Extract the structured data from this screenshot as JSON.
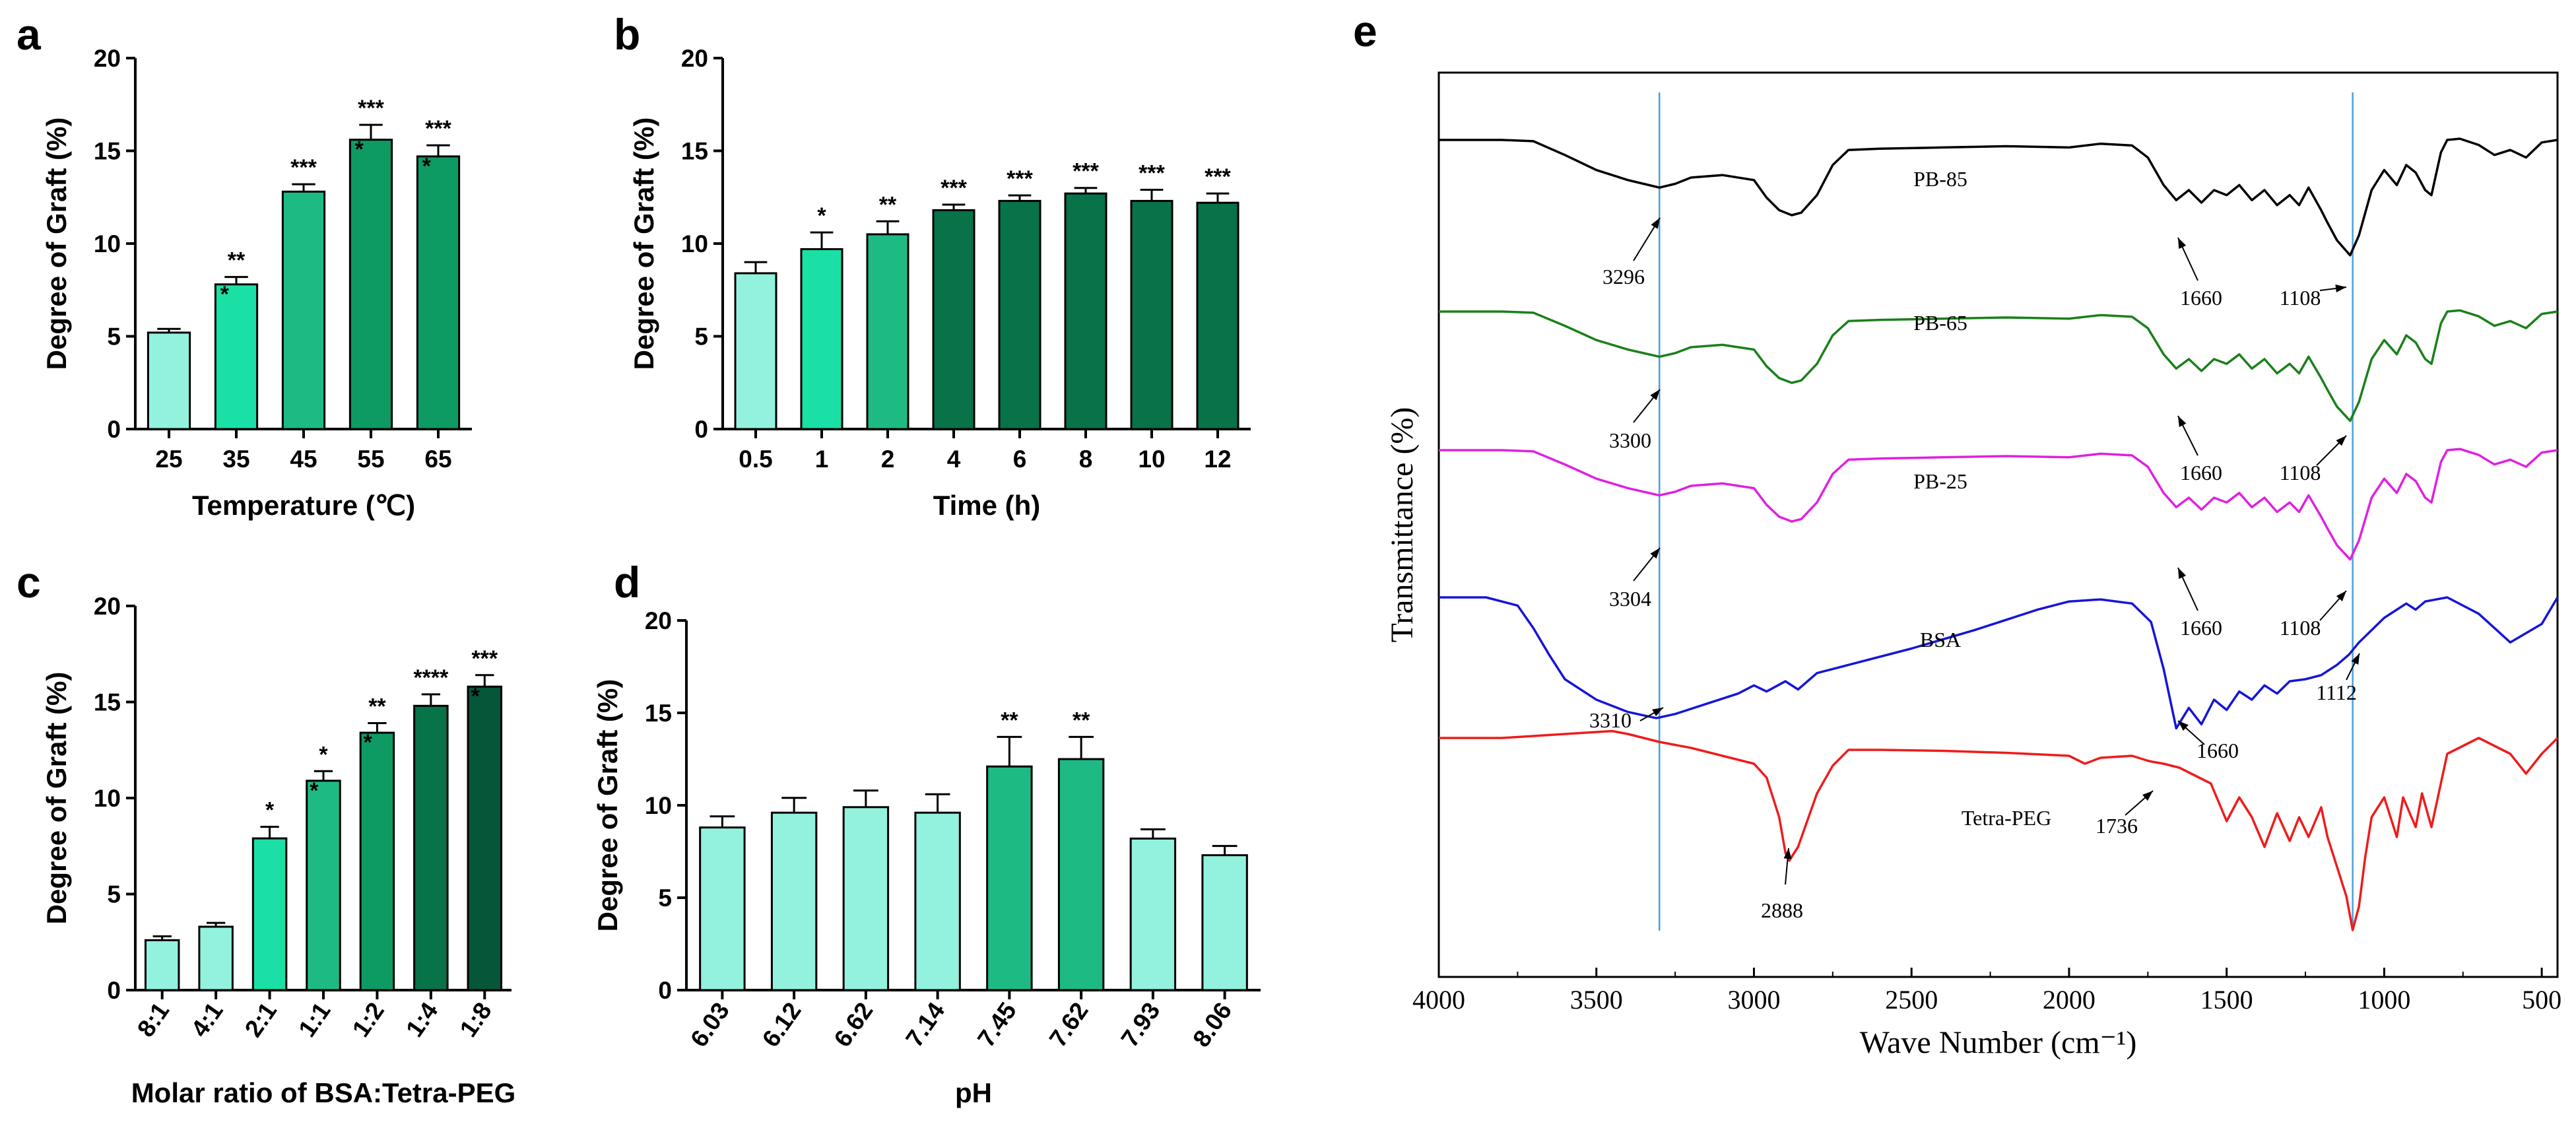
{
  "colors": {
    "c1": "#93F2DD",
    "c2": "#1BE0A6",
    "c3": "#1DBB83",
    "c4": "#0E9B63",
    "c5": "#087248",
    "c6": "#06573A"
  },
  "chart_data": [
    {
      "panel": "a",
      "type": "bar",
      "categories": [
        "25",
        "35",
        "45",
        "55",
        "65"
      ],
      "values": [
        5.2,
        7.8,
        12.8,
        15.6,
        14.7
      ],
      "errors": [
        0.2,
        0.4,
        0.4,
        0.8,
        0.6
      ],
      "significance": [
        "",
        "**\n*",
        "***",
        "***\n*",
        "***\n*"
      ],
      "bar_colors": [
        "#93F2DD",
        "#1BE0A6",
        "#1DBB83",
        "#0E9B63",
        "#0E9B63"
      ],
      "xlabel": "Temperature (℃)",
      "ylabel": "Degree of Graft (%)",
      "ylim": [
        0,
        20
      ],
      "yticks": [
        "0",
        "5",
        "10",
        "15",
        "20"
      ]
    },
    {
      "panel": "b",
      "type": "bar",
      "categories": [
        "0.5",
        "1",
        "2",
        "4",
        "6",
        "8",
        "10",
        "12"
      ],
      "values": [
        8.4,
        9.7,
        10.5,
        11.8,
        12.3,
        12.7,
        12.3,
        12.2
      ],
      "errors": [
        0.6,
        0.9,
        0.7,
        0.3,
        0.3,
        0.3,
        0.6,
        0.5
      ],
      "significance": [
        "",
        "*",
        "**",
        "***",
        "***",
        "***",
        "***",
        "***"
      ],
      "bar_colors": [
        "#93F2DD",
        "#1BE0A6",
        "#1DBB83",
        "#087248",
        "#087248",
        "#087248",
        "#087248",
        "#087248"
      ],
      "xlabel": "Time (h)",
      "ylabel": "Degree of Graft (%)",
      "ylim": [
        0,
        20
      ],
      "yticks": [
        "0",
        "5",
        "10",
        "15",
        "20"
      ]
    },
    {
      "panel": "c",
      "type": "bar",
      "categories": [
        "8:1",
        "4:1",
        "2:1",
        "1:1",
        "1:2",
        "1:4",
        "1:8"
      ],
      "values": [
        2.6,
        3.3,
        7.9,
        10.9,
        13.4,
        14.8,
        15.8
      ],
      "errors": [
        0.2,
        0.2,
        0.6,
        0.5,
        0.5,
        0.6,
        0.6
      ],
      "significance": [
        "",
        "",
        "*",
        "*\n*",
        "**\n*",
        "****",
        "***\n*"
      ],
      "bar_colors": [
        "#93F2DD",
        "#93F2DD",
        "#1BE0A6",
        "#1DBB83",
        "#0E9B63",
        "#087248",
        "#06573A"
      ],
      "xlabel": "Molar ratio of BSA:Tetra-PEG",
      "ylabel": "Degree of Graft (%)",
      "ylim": [
        0,
        20
      ],
      "yticks": [
        "0",
        "5",
        "10",
        "15",
        "20"
      ]
    },
    {
      "panel": "d",
      "type": "bar",
      "categories": [
        "6.03",
        "6.12",
        "6.62",
        "7.14",
        "7.45",
        "7.62",
        "7.93",
        "8.06"
      ],
      "values": [
        8.8,
        9.6,
        9.9,
        9.6,
        12.1,
        12.5,
        8.2,
        7.3
      ],
      "errors": [
        0.6,
        0.8,
        0.9,
        1.0,
        1.6,
        1.2,
        0.5,
        0.5
      ],
      "significance": [
        "",
        "",
        "",
        "",
        "**",
        "**",
        "",
        ""
      ],
      "bar_colors": [
        "#93F2DD",
        "#93F2DD",
        "#93F2DD",
        "#93F2DD",
        "#1DBB83",
        "#1DBB83",
        "#93F2DD",
        "#93F2DD"
      ],
      "xlabel": "pH",
      "ylabel": "Degree of Graft (%)",
      "ylim": [
        0,
        20
      ],
      "yticks": [
        "0",
        "5",
        "10",
        "15",
        "20"
      ]
    },
    {
      "panel": "e",
      "type": "line",
      "xlabel": "Wave Number (cm⁻¹)",
      "ylabel": "Transmittance (%)",
      "xlim": [
        4000,
        450
      ],
      "xticks": [
        "4000",
        "3500",
        "3000",
        "2500",
        "2000",
        "1500",
        "1000",
        "500"
      ],
      "reference_lines": [
        3300,
        1100
      ],
      "series": [
        {
          "name": "PB-85",
          "color": "#000000",
          "x": [
            4000,
            3800,
            3700,
            3600,
            3500,
            3400,
            3350,
            3300,
            3250,
            3200,
            3100,
            3000,
            2960,
            2920,
            2880,
            2850,
            2800,
            2750,
            2700,
            2600,
            2400,
            2200,
            2000,
            1900,
            1800,
            1750,
            1700,
            1660,
            1620,
            1580,
            1540,
            1500,
            1460,
            1420,
            1380,
            1340,
            1300,
            1270,
            1240,
            1200,
            1180,
            1150,
            1108,
            1080,
            1040,
            1000,
            960,
            930,
            900,
            870,
            850,
            820,
            800,
            760,
            700,
            650,
            600,
            550,
            500,
            450
          ],
          "y": [
            0,
            0,
            0.5,
            6,
            12,
            16,
            17.5,
            19,
            17.5,
            15,
            14,
            16,
            23,
            28,
            30,
            29,
            22,
            10,
            4,
            3.5,
            3,
            2.5,
            3,
            1.5,
            2.2,
            7,
            18,
            24,
            20,
            25,
            20,
            22,
            18,
            24,
            20,
            26,
            22,
            26,
            19,
            28,
            33,
            40,
            46,
            38,
            20,
            12,
            18,
            10,
            13,
            20,
            22,
            5,
            0,
            -0.5,
            2,
            6,
            4,
            7,
            1,
            0
          ]
        },
        {
          "name": "PB-65",
          "color": "#1A801A",
          "x": [
            4000,
            3800,
            3700,
            3600,
            3500,
            3400,
            3350,
            3300,
            3250,
            3200,
            3100,
            3000,
            2960,
            2920,
            2880,
            2850,
            2800,
            2750,
            2700,
            2600,
            2400,
            2200,
            2000,
            1900,
            1800,
            1750,
            1700,
            1660,
            1620,
            1580,
            1540,
            1500,
            1460,
            1420,
            1380,
            1340,
            1300,
            1270,
            1240,
            1200,
            1180,
            1150,
            1108,
            1080,
            1040,
            1000,
            960,
            930,
            900,
            870,
            850,
            820,
            800,
            760,
            700,
            650,
            600,
            550,
            500,
            450
          ],
          "y": [
            0,
            0,
            0.5,
            6,
            12,
            16,
            17.5,
            19,
            17.5,
            15,
            14,
            16,
            23,
            28,
            30,
            29,
            22,
            10,
            4,
            3.5,
            3,
            2.5,
            3,
            1.5,
            2.2,
            7,
            18,
            24,
            20,
            25,
            20,
            22,
            18,
            24,
            20,
            26,
            22,
            26,
            19,
            28,
            33,
            40,
            46,
            38,
            20,
            12,
            18,
            10,
            13,
            20,
            22,
            5,
            0,
            -0.5,
            2,
            6,
            4,
            7,
            1,
            0
          ]
        },
        {
          "name": "PB-25",
          "color": "#E020E0",
          "x": [
            4000,
            3800,
            3700,
            3600,
            3500,
            3400,
            3350,
            3300,
            3250,
            3200,
            3100,
            3000,
            2960,
            2920,
            2880,
            2850,
            2800,
            2750,
            2700,
            2600,
            2400,
            2200,
            2000,
            1900,
            1800,
            1750,
            1700,
            1660,
            1620,
            1580,
            1540,
            1500,
            1460,
            1420,
            1380,
            1340,
            1300,
            1270,
            1240,
            1200,
            1180,
            1150,
            1108,
            1080,
            1040,
            1000,
            960,
            930,
            900,
            870,
            850,
            820,
            800,
            760,
            700,
            650,
            600,
            550,
            500,
            450
          ],
          "y": [
            0,
            0,
            0.5,
            6,
            12,
            16,
            17.5,
            19,
            17.5,
            15,
            14,
            16,
            23,
            28,
            30,
            29,
            22,
            10,
            4,
            3.5,
            3,
            2.5,
            3,
            1.5,
            2.2,
            7,
            18,
            24,
            20,
            25,
            20,
            22,
            18,
            24,
            20,
            26,
            22,
            26,
            19,
            28,
            33,
            40,
            46,
            38,
            20,
            12,
            18,
            10,
            13,
            20,
            22,
            5,
            0,
            -0.5,
            2,
            6,
            4,
            7,
            1,
            0
          ]
        },
        {
          "name": "BSA",
          "color": "#1515D8",
          "x": [
            4000,
            3850,
            3750,
            3700,
            3650,
            3600,
            3500,
            3400,
            3310,
            3250,
            3150,
            3050,
            3000,
            2960,
            2900,
            2860,
            2800,
            2700,
            2500,
            2300,
            2100,
            2000,
            1900,
            1800,
            1740,
            1700,
            1660,
            1620,
            1580,
            1540,
            1500,
            1460,
            1420,
            1380,
            1340,
            1300,
            1250,
            1200,
            1150,
            1112,
            1080,
            1040,
            1000,
            960,
            930,
            900,
            870,
            800,
            700,
            600,
            500,
            450
          ],
          "y": [
            0,
            0,
            4,
            15,
            28,
            40,
            50,
            56,
            59,
            57,
            52,
            47,
            43,
            46,
            41,
            45,
            37,
            33,
            25,
            16,
            6,
            2,
            1,
            3,
            12,
            35,
            64,
            54,
            62,
            50,
            55,
            46,
            50,
            43,
            47,
            41,
            40,
            38,
            33,
            28,
            22,
            16,
            10,
            6,
            3,
            6,
            2,
            0,
            8,
            22,
            13,
            0
          ]
        },
        {
          "name": "Tetra-PEG",
          "color": "#EE1C1C",
          "x": [
            4000,
            3800,
            3600,
            3500,
            3450,
            3400,
            3350,
            3300,
            3200,
            3100,
            3000,
            2960,
            2920,
            2900,
            2888,
            2860,
            2800,
            2750,
            2700,
            2600,
            2400,
            2200,
            2000,
            1950,
            1900,
            1800,
            1750,
            1736,
            1700,
            1650,
            1600,
            1550,
            1500,
            1460,
            1420,
            1380,
            1340,
            1300,
            1270,
            1240,
            1200,
            1180,
            1150,
            1120,
            1100,
            1080,
            1060,
            1040,
            1000,
            960,
            940,
            900,
            880,
            850,
            800,
            700,
            600,
            550,
            500,
            450
          ],
          "y": [
            0,
            0,
            -2,
            -3,
            -3.5,
            -2,
            0,
            2,
            5,
            9,
            13,
            20,
            40,
            58,
            62,
            55,
            28,
            14,
            6,
            6,
            6.5,
            7.5,
            9,
            13,
            10,
            9,
            11.5,
            12,
            13,
            15,
            19,
            23,
            42,
            30,
            40,
            55,
            38,
            52,
            40,
            50,
            35,
            50,
            65,
            80,
            97,
            85,
            60,
            40,
            30,
            50,
            30,
            45,
            28,
            45,
            8,
            0,
            8,
            18,
            8,
            0
          ]
        }
      ],
      "annotations": [
        "3296",
        "1660",
        "1108",
        "3300",
        "1660",
        "1108",
        "3304",
        "1660",
        "1108",
        "3310",
        "1660",
        "1112",
        "2888",
        "1736"
      ]
    }
  ],
  "panels": {
    "a": {
      "label": "a"
    },
    "b": {
      "label": "b"
    },
    "c": {
      "label": "c"
    },
    "d": {
      "label": "d"
    },
    "e": {
      "label": "e"
    }
  }
}
